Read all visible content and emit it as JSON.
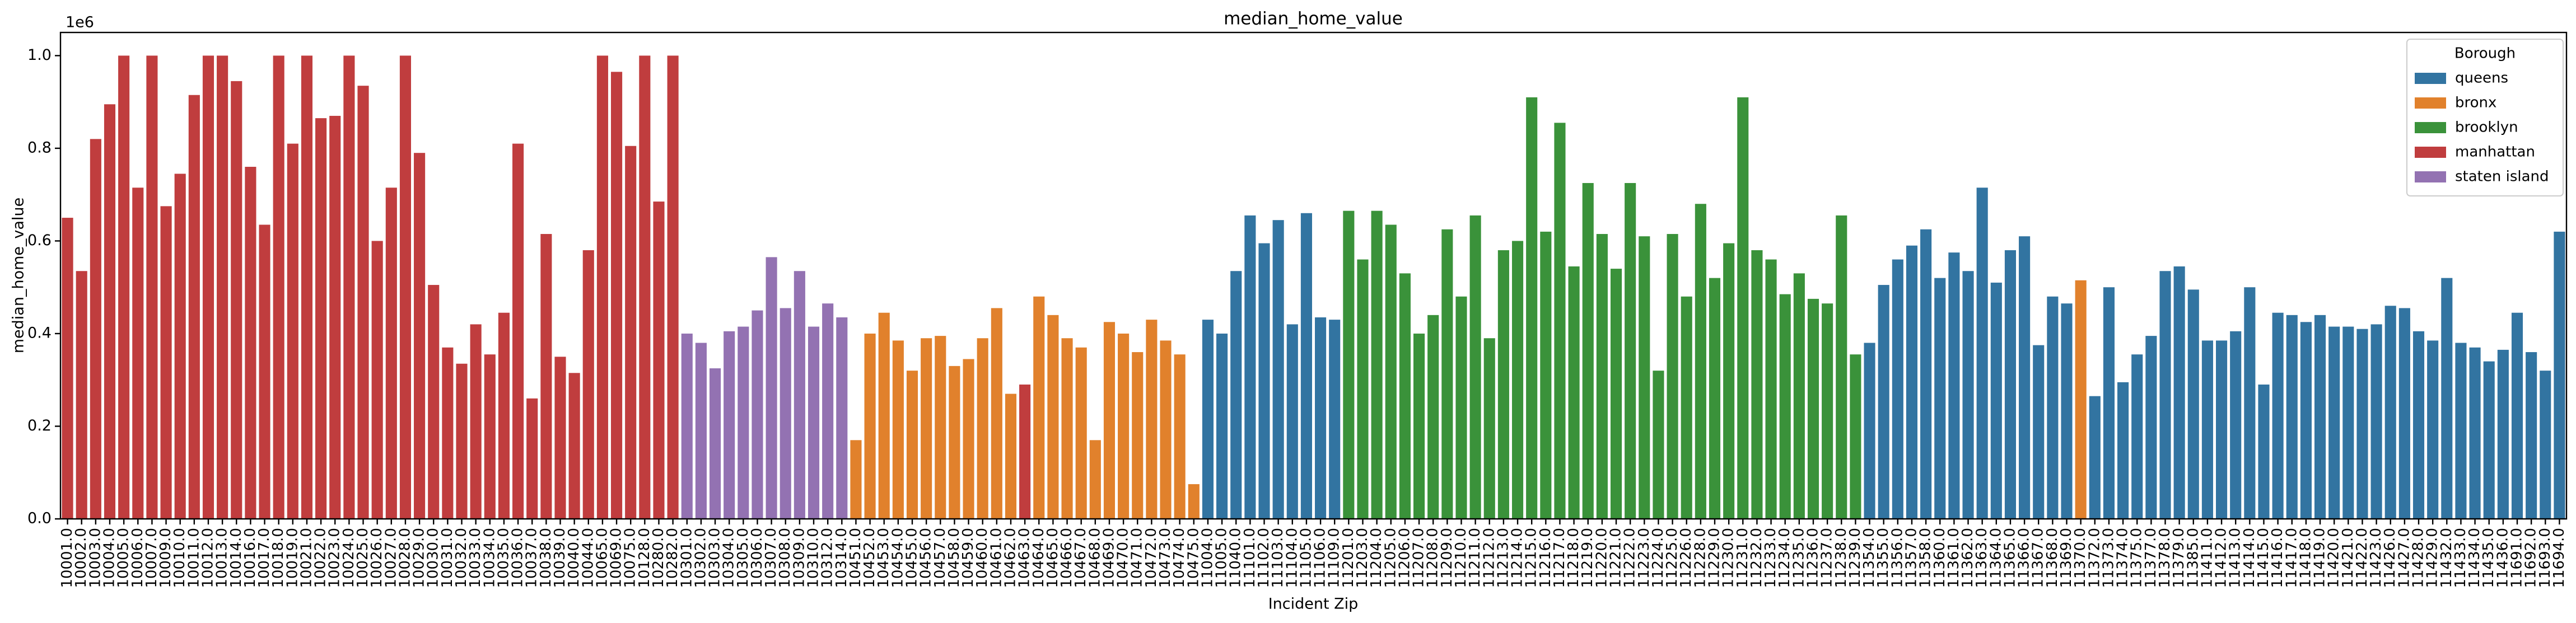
{
  "chart_data": {
    "type": "bar",
    "title": "median_home_value",
    "x_label": "Incident Zip",
    "y_label": "median_home_value",
    "y_offset_text": "1e6",
    "categories": [
      "10001.0",
      "10002.0",
      "10003.0",
      "10004.0",
      "10005.0",
      "10006.0",
      "10007.0",
      "10009.0",
      "10010.0",
      "10011.0",
      "10012.0",
      "10013.0",
      "10014.0",
      "10016.0",
      "10017.0",
      "10018.0",
      "10019.0",
      "10021.0",
      "10022.0",
      "10023.0",
      "10024.0",
      "10025.0",
      "10026.0",
      "10027.0",
      "10028.0",
      "10029.0",
      "10030.0",
      "10031.0",
      "10032.0",
      "10033.0",
      "10034.0",
      "10035.0",
      "10036.0",
      "10037.0",
      "10038.0",
      "10039.0",
      "10040.0",
      "10044.0",
      "10065.0",
      "10069.0",
      "10075.0",
      "10128.0",
      "10280.0",
      "10282.0",
      "10301.0",
      "10302.0",
      "10303.0",
      "10304.0",
      "10305.0",
      "10306.0",
      "10307.0",
      "10308.0",
      "10309.0",
      "10310.0",
      "10312.0",
      "10314.0",
      "10451.0",
      "10452.0",
      "10453.0",
      "10454.0",
      "10455.0",
      "10456.0",
      "10457.0",
      "10458.0",
      "10459.0",
      "10460.0",
      "10461.0",
      "10462.0",
      "10463.0",
      "10464.0",
      "10465.0",
      "10466.0",
      "10467.0",
      "10468.0",
      "10469.0",
      "10470.0",
      "10471.0",
      "10472.0",
      "10473.0",
      "10474.0",
      "10475.0",
      "11004.0",
      "11005.0",
      "11040.0",
      "11101.0",
      "11102.0",
      "11103.0",
      "11104.0",
      "11105.0",
      "11106.0",
      "11109.0",
      "11201.0",
      "11203.0",
      "11204.0",
      "11205.0",
      "11206.0",
      "11207.0",
      "11208.0",
      "11209.0",
      "11210.0",
      "11211.0",
      "11212.0",
      "11213.0",
      "11214.0",
      "11215.0",
      "11216.0",
      "11217.0",
      "11218.0",
      "11219.0",
      "11220.0",
      "11221.0",
      "11222.0",
      "11223.0",
      "11224.0",
      "11225.0",
      "11226.0",
      "11228.0",
      "11229.0",
      "11230.0",
      "11231.0",
      "11232.0",
      "11233.0",
      "11234.0",
      "11235.0",
      "11236.0",
      "11237.0",
      "11238.0",
      "11239.0",
      "11354.0",
      "11355.0",
      "11356.0",
      "11357.0",
      "11358.0",
      "11360.0",
      "11361.0",
      "11362.0",
      "11363.0",
      "11364.0",
      "11365.0",
      "11366.0",
      "11367.0",
      "11368.0",
      "11369.0",
      "11370.0",
      "11372.0",
      "11373.0",
      "11374.0",
      "11375.0",
      "11377.0",
      "11378.0",
      "11379.0",
      "11385.0",
      "11411.0",
      "11412.0",
      "11413.0",
      "11414.0",
      "11415.0",
      "11416.0",
      "11417.0",
      "11418.0",
      "11419.0",
      "11420.0",
      "11421.0",
      "11422.0",
      "11423.0",
      "11426.0",
      "11427.0",
      "11428.0",
      "11429.0",
      "11432.0",
      "11433.0",
      "11434.0",
      "11435.0",
      "11436.0",
      "11691.0",
      "11692.0",
      "11693.0",
      "11694.0"
    ],
    "values": [
      0.65,
      0.535,
      0.82,
      0.895,
      1.0,
      0.715,
      1.0,
      0.675,
      0.745,
      0.915,
      1.0,
      1.0,
      0.945,
      0.76,
      0.635,
      1.0,
      0.81,
      1.0,
      0.865,
      0.87,
      1.0,
      0.935,
      0.6,
      0.715,
      1.0,
      0.79,
      0.505,
      0.37,
      0.335,
      0.42,
      0.355,
      0.445,
      0.81,
      0.26,
      0.615,
      0.35,
      0.315,
      0.58,
      1.0,
      0.965,
      0.805,
      1.0,
      0.685,
      1.0,
      0.4,
      0.38,
      0.325,
      0.405,
      0.415,
      0.45,
      0.565,
      0.455,
      0.535,
      0.415,
      0.465,
      0.435,
      0.17,
      0.4,
      0.445,
      0.385,
      0.32,
      0.39,
      0.395,
      0.33,
      0.345,
      0.39,
      0.455,
      0.27,
      0.29,
      0.48,
      0.44,
      0.39,
      0.37,
      0.17,
      0.425,
      0.4,
      0.36,
      0.43,
      0.385,
      0.355,
      0.075,
      0.43,
      0.4,
      0.535,
      0.655,
      0.595,
      0.645,
      0.42,
      0.66,
      0.435,
      0.43,
      0.665,
      0.56,
      0.665,
      0.635,
      0.53,
      0.4,
      0.44,
      0.625,
      0.48,
      0.655,
      0.39,
      0.58,
      0.6,
      0.91,
      0.62,
      0.855,
      0.545,
      0.725,
      0.615,
      0.54,
      0.725,
      0.61,
      0.32,
      0.615,
      0.48,
      0.68,
      0.52,
      0.595,
      0.91,
      0.58,
      0.56,
      0.485,
      0.53,
      0.475,
      0.465,
      0.655,
      0.355,
      0.38,
      0.505,
      0.56,
      0.59,
      0.625,
      0.52,
      0.575,
      0.535,
      0.715,
      0.51,
      0.58,
      0.61,
      0.375,
      0.48,
      0.465,
      0.515,
      0.265,
      0.5,
      0.295,
      0.355,
      0.395,
      0.535,
      0.545,
      0.495,
      0.385,
      0.385,
      0.405,
      0.5,
      0.29,
      0.445,
      0.44,
      0.425,
      0.44,
      0.415,
      0.415,
      0.41,
      0.42,
      0.46,
      0.455,
      0.405,
      0.385,
      0.52,
      0.38,
      0.37,
      0.34,
      0.365,
      0.445,
      0.36,
      0.32,
      0.62
    ],
    "borough": [
      "manhattan",
      "manhattan",
      "manhattan",
      "manhattan",
      "manhattan",
      "manhattan",
      "manhattan",
      "manhattan",
      "manhattan",
      "manhattan",
      "manhattan",
      "manhattan",
      "manhattan",
      "manhattan",
      "manhattan",
      "manhattan",
      "manhattan",
      "manhattan",
      "manhattan",
      "manhattan",
      "manhattan",
      "manhattan",
      "manhattan",
      "manhattan",
      "manhattan",
      "manhattan",
      "manhattan",
      "manhattan",
      "manhattan",
      "manhattan",
      "manhattan",
      "manhattan",
      "manhattan",
      "manhattan",
      "manhattan",
      "manhattan",
      "manhattan",
      "manhattan",
      "manhattan",
      "manhattan",
      "manhattan",
      "manhattan",
      "manhattan",
      "manhattan",
      "staten island",
      "staten island",
      "staten island",
      "staten island",
      "staten island",
      "staten island",
      "staten island",
      "staten island",
      "staten island",
      "staten island",
      "staten island",
      "staten island",
      "bronx",
      "bronx",
      "bronx",
      "bronx",
      "bronx",
      "bronx",
      "bronx",
      "bronx",
      "bronx",
      "bronx",
      "bronx",
      "bronx",
      "manhattan",
      "bronx",
      "bronx",
      "bronx",
      "bronx",
      "bronx",
      "bronx",
      "bronx",
      "bronx",
      "bronx",
      "bronx",
      "bronx",
      "bronx",
      "queens",
      "queens",
      "queens",
      "queens",
      "queens",
      "queens",
      "queens",
      "queens",
      "queens",
      "queens",
      "brooklyn",
      "brooklyn",
      "brooklyn",
      "brooklyn",
      "brooklyn",
      "brooklyn",
      "brooklyn",
      "brooklyn",
      "brooklyn",
      "brooklyn",
      "brooklyn",
      "brooklyn",
      "brooklyn",
      "brooklyn",
      "brooklyn",
      "brooklyn",
      "brooklyn",
      "brooklyn",
      "brooklyn",
      "brooklyn",
      "brooklyn",
      "brooklyn",
      "brooklyn",
      "brooklyn",
      "brooklyn",
      "brooklyn",
      "brooklyn",
      "brooklyn",
      "brooklyn",
      "brooklyn",
      "brooklyn",
      "brooklyn",
      "brooklyn",
      "brooklyn",
      "brooklyn",
      "brooklyn",
      "brooklyn",
      "queens",
      "queens",
      "queens",
      "queens",
      "queens",
      "queens",
      "queens",
      "queens",
      "queens",
      "queens",
      "queens",
      "queens",
      "queens",
      "queens",
      "queens",
      "bronx",
      "queens",
      "queens",
      "queens",
      "queens",
      "queens",
      "queens",
      "queens",
      "queens",
      "queens",
      "queens",
      "queens",
      "queens",
      "queens",
      "queens",
      "queens",
      "queens",
      "queens",
      "queens",
      "queens",
      "queens",
      "queens",
      "queens",
      "queens",
      "queens",
      "queens",
      "queens",
      "queens",
      "queens",
      "queens",
      "queens",
      "queens",
      "queens",
      "queens",
      "queens"
    ],
    "series": [
      {
        "name": "queens",
        "color": "#3274a1"
      },
      {
        "name": "bronx",
        "color": "#e1812c"
      },
      {
        "name": "brooklyn",
        "color": "#3a923a"
      },
      {
        "name": "manhattan",
        "color": "#c03d3e"
      },
      {
        "name": "staten island",
        "color": "#9372b2"
      }
    ],
    "legend": {
      "title": "Borough",
      "position": "upper right"
    },
    "ylim": [
      0,
      1.05
    ],
    "yticks": [
      {
        "value": 0,
        "label": "0.0"
      },
      {
        "value": 0.2,
        "label": "0.2"
      },
      {
        "value": 0.4,
        "label": "0.4"
      },
      {
        "value": 0.6,
        "label": "0.6"
      },
      {
        "value": 0.8,
        "label": "0.8"
      },
      {
        "value": 1,
        "label": "1.0"
      }
    ],
    "grid": false
  }
}
